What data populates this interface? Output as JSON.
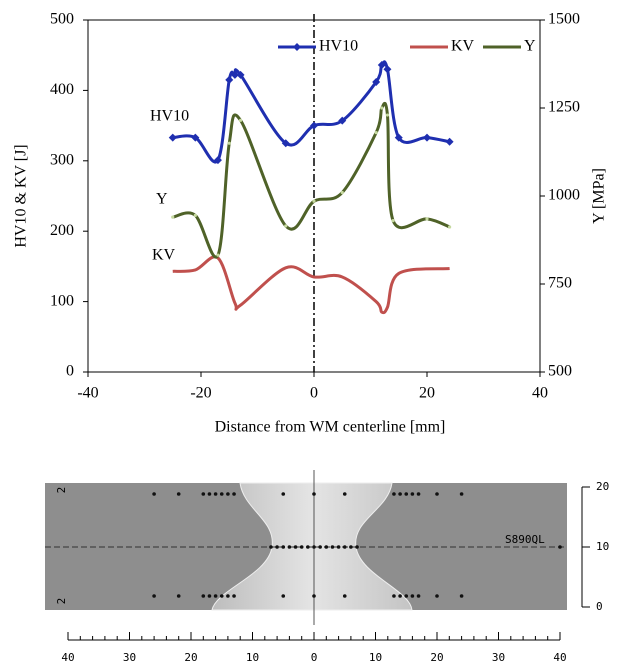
{
  "chart_data": {
    "type": "line",
    "xlabel": "Distance from WM centerline [mm]",
    "ylabel": "HV10 &  KV [J]",
    "y2label": "Y [MPa]",
    "xlim": [
      -40,
      40
    ],
    "xticks": [
      -40,
      -20,
      0,
      20,
      40
    ],
    "ylim": [
      0,
      500
    ],
    "yticks": [
      0,
      100,
      200,
      300,
      400,
      500
    ],
    "y2lim": [
      500,
      1500
    ],
    "y2ticks": [
      500,
      750,
      1000,
      1250,
      1500
    ],
    "legend": "top-right",
    "annotations": [
      "HV10",
      "Y",
      "KV"
    ],
    "series": [
      {
        "name": "HV10",
        "color": "#1f2fb0",
        "x": [
          -25,
          -21,
          -17,
          -15,
          -14,
          -13,
          -5,
          0,
          5,
          11,
          12,
          13,
          15,
          20,
          24
        ],
        "values": [
          333,
          333,
          301,
          415,
          422,
          422,
          325,
          350,
          357,
          412,
          436,
          430,
          333,
          333,
          327
        ]
      },
      {
        "name": "KV",
        "color": "#c0504d",
        "x": [
          -25,
          -21,
          -17,
          -14,
          -13,
          -5,
          0,
          5,
          11,
          12,
          13,
          15,
          24
        ],
        "values": [
          143,
          145,
          162,
          98,
          95,
          148,
          135,
          135,
          100,
          85,
          92,
          140,
          147
        ]
      },
      {
        "name": "Y",
        "color": "#4f6228",
        "axis": "y2",
        "x": [
          -25,
          -21,
          -17,
          -15,
          -13,
          -5,
          0,
          5,
          11,
          12,
          13,
          14,
          20,
          24
        ],
        "values": [
          940,
          945,
          832,
          1150,
          1215,
          915,
          985,
          1010,
          1180,
          1250,
          1230,
          930,
          935,
          912
        ]
      }
    ]
  },
  "micrograph": {
    "steel": "S890QL",
    "row_marks": [
      "2",
      "2"
    ],
    "xticks": [
      {
        "value": -40,
        "label": "40"
      },
      {
        "value": -30,
        "label": "30"
      },
      {
        "value": -20,
        "label": "20"
      },
      {
        "value": -10,
        "label": "10"
      },
      0,
      10,
      20,
      30,
      40
    ],
    "yticks": [
      0,
      10,
      20
    ]
  }
}
